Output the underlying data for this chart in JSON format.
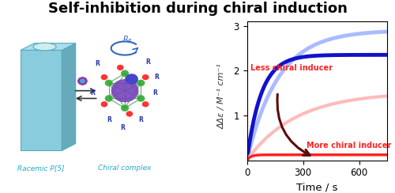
{
  "title": "Self-inhibition during chiral induction",
  "title_fontsize": 13,
  "title_fontweight": "bold",
  "xlabel": "Time / s",
  "ylabel": "ΔΔε / M⁻¹ cm⁻¹",
  "xlim": [
    0,
    750
  ],
  "ylim": [
    0,
    3.1
  ],
  "xticks": [
    0,
    300,
    600
  ],
  "yticks": [
    1,
    2,
    3
  ],
  "less_label": "Less chiral inducer",
  "more_label": "More chiral inducer",
  "less_label_color": "#FF2222",
  "more_label_color": "#FF2222",
  "curve_blue_dark": {
    "color": "#1111CC",
    "lw": 3.5,
    "plateau": 2.35,
    "rate": 0.013
  },
  "curve_blue_light": {
    "color": "#AABBFF",
    "lw": 3.5,
    "plateau": 2.9,
    "rate": 0.006
  },
  "curve_red_dark": {
    "color": "#FF2222",
    "lw": 2.5,
    "plateau": 0.12,
    "rate": 0.05
  },
  "curve_red_light": {
    "color": "#FFBBBB",
    "lw": 3.0,
    "plateau": 1.52,
    "rate": 0.0038
  },
  "arrow_color": "#5C0A0A",
  "fig_width": 5.0,
  "fig_height": 2.44,
  "dpi": 100,
  "bg_color": "#FFFFFF",
  "racemic_label": "Racemic P[5]",
  "chiral_label": "Chiral complex",
  "racemic_label_color": "#22AACC",
  "chiral_label_color": "#22AACC",
  "hex_color": "#88CCDD",
  "hex_dark": "#66AABB",
  "rp_color": "#2266CC",
  "eq_arrow_color": "#333333"
}
